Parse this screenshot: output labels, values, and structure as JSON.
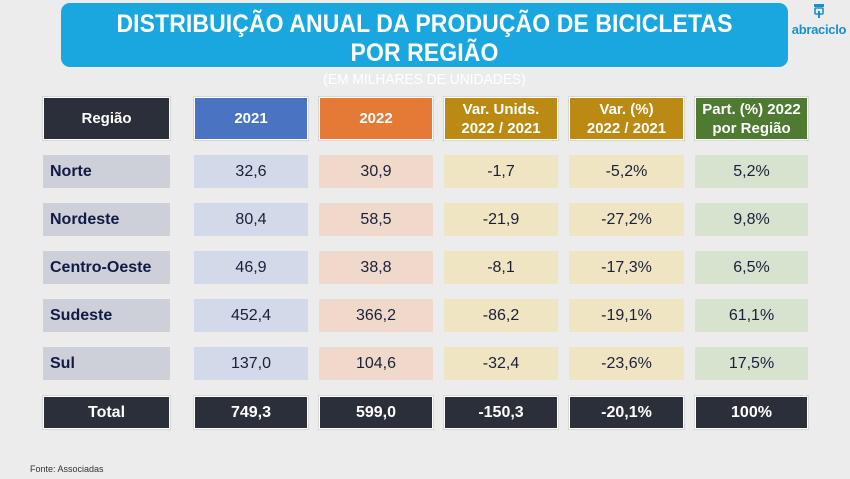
{
  "title": "DISTRIBUIÇÃO ANUAL DA PRODUÇÃO DE BICICLETAS POR REGIÃO",
  "subtitle": "(EM MILHARES DE UNIDADES)",
  "logo_text": "abraciclo",
  "source": "Fonte: Associadas",
  "colors": {
    "title_bg": "#1aa7df",
    "header_dark": "#2b2f3a",
    "header_2021": "#4a73c2",
    "header_2022": "#e57a37",
    "header_var": "#bb8a12",
    "header_part": "#4e7a32"
  },
  "chart_data": {
    "type": "table",
    "title": "DISTRIBUIÇÃO ANUAL DA PRODUÇÃO DE BICICLETAS POR REGIÃO",
    "subtitle": "(EM MILHARES DE UNIDADES)",
    "columns": [
      {
        "line1": "Região",
        "line2": ""
      },
      {
        "line1": "2021",
        "line2": ""
      },
      {
        "line1": "2022",
        "line2": ""
      },
      {
        "line1": "Var. Unids.",
        "line2": "2022 / 2021"
      },
      {
        "line1": "Var. (%)",
        "line2": "2022 / 2021"
      },
      {
        "line1": "Part. (%) 2022",
        "line2": "por Região"
      }
    ],
    "rows": [
      [
        "Norte",
        "32,6",
        "30,9",
        "-1,7",
        "-5,2%",
        "5,2%"
      ],
      [
        "Nordeste",
        "80,4",
        "58,5",
        "-21,9",
        "-27,2%",
        "9,8%"
      ],
      [
        "Centro-Oeste",
        "46,9",
        "38,8",
        "-8,1",
        "-17,3%",
        "6,5%"
      ],
      [
        "Sudeste",
        "452,4",
        "366,2",
        "-86,2",
        "-19,1%",
        "61,1%"
      ],
      [
        "Sul",
        "137,0",
        "104,6",
        "-32,4",
        "-23,6%",
        "17,5%"
      ]
    ],
    "total": [
      "Total",
      "749,3",
      "599,0",
      "-150,3",
      "-20,1%",
      "100%"
    ]
  }
}
